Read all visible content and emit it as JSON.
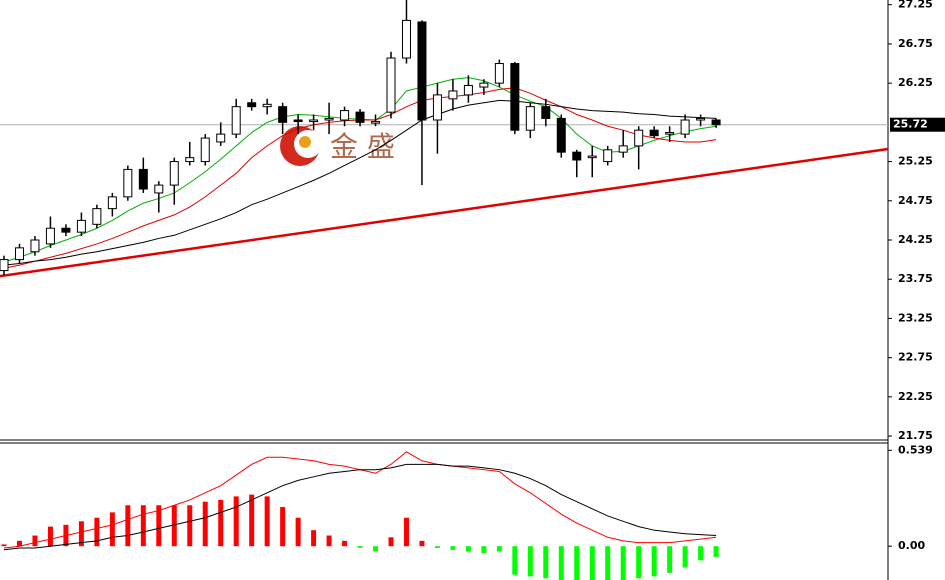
{
  "chart_data": [
    {
      "type": "candlestick",
      "ylim": [
        21.7,
        27.31
      ],
      "yticks": [
        27.25,
        26.75,
        26.25,
        25.25,
        24.75,
        24.25,
        23.75,
        23.25,
        22.75,
        22.25,
        21.75
      ],
      "current_price": 25.72,
      "current_price_color": "#b0b0b0",
      "up_color": "#ffffff",
      "down_color": "#000000",
      "wick_color": "#000000",
      "watermark": "金 盛",
      "open": [
        23.86,
        24.0,
        24.1,
        24.2,
        24.4,
        24.35,
        24.45,
        24.65,
        24.8,
        25.15,
        24.85,
        24.95,
        25.25,
        25.25,
        25.5,
        25.6,
        26.0,
        25.95,
        25.95,
        25.78,
        25.76,
        25.78,
        25.78,
        25.88,
        25.74,
        25.88,
        26.57,
        27.03,
        25.78,
        26.05,
        26.1,
        26.2,
        26.25,
        26.5,
        25.65,
        25.95,
        25.8,
        25.37,
        25.3,
        25.25,
        25.37,
        25.45,
        25.65,
        25.6,
        25.6,
        25.78,
        25.78
      ],
      "high": [
        24.05,
        24.2,
        24.3,
        24.55,
        24.45,
        24.6,
        24.7,
        24.85,
        25.2,
        25.3,
        25.0,
        25.3,
        25.5,
        25.6,
        25.75,
        26.05,
        26.05,
        26.05,
        26.0,
        25.85,
        25.85,
        26.0,
        25.95,
        25.92,
        25.85,
        26.65,
        27.31,
        27.05,
        26.25,
        26.3,
        26.35,
        26.3,
        26.55,
        26.52,
        26.0,
        26.05,
        25.85,
        25.4,
        25.45,
        25.45,
        25.65,
        25.7,
        25.7,
        25.7,
        25.85,
        25.85,
        25.8
      ],
      "low": [
        23.8,
        23.95,
        24.05,
        24.15,
        24.3,
        24.3,
        24.4,
        24.55,
        24.75,
        24.85,
        24.6,
        24.7,
        25.2,
        25.2,
        25.45,
        25.55,
        25.9,
        25.85,
        25.6,
        25.6,
        25.65,
        25.6,
        25.7,
        25.7,
        25.7,
        25.8,
        26.5,
        24.95,
        25.35,
        25.9,
        26.0,
        26.1,
        26.2,
        25.6,
        25.55,
        25.7,
        25.3,
        25.05,
        25.05,
        25.2,
        25.3,
        25.15,
        25.55,
        25.5,
        25.55,
        25.7,
        25.68
      ],
      "close": [
        24.0,
        24.15,
        24.25,
        24.4,
        24.35,
        24.5,
        24.65,
        24.8,
        25.15,
        24.9,
        24.95,
        25.25,
        25.3,
        25.55,
        25.6,
        25.95,
        25.95,
        25.98,
        25.75,
        25.76,
        25.78,
        25.8,
        25.9,
        25.75,
        25.76,
        26.57,
        27.05,
        25.78,
        26.1,
        26.15,
        26.22,
        26.25,
        26.5,
        25.65,
        25.95,
        25.8,
        25.37,
        25.27,
        25.32,
        25.4,
        25.45,
        25.65,
        25.58,
        25.62,
        25.78,
        25.8,
        25.72
      ],
      "series": [
        {
          "color": "#00b000",
          "values": [
            23.97,
            24.03,
            24.1,
            24.18,
            24.25,
            24.32,
            24.4,
            24.5,
            24.62,
            24.72,
            24.78,
            24.85,
            24.98,
            25.12,
            25.28,
            25.45,
            25.62,
            25.75,
            25.82,
            25.85,
            25.84,
            25.82,
            25.8,
            25.79,
            25.78,
            25.92,
            26.15,
            26.2,
            26.25,
            26.3,
            26.32,
            26.28,
            26.2,
            26.1,
            26.02,
            25.95,
            25.8,
            25.6,
            25.45,
            25.37,
            25.38,
            25.45,
            25.52,
            25.58,
            25.63,
            25.67,
            25.7
          ]
        },
        {
          "color": "#e00000",
          "values": [
            23.89,
            23.93,
            23.98,
            24.03,
            24.08,
            24.14,
            24.2,
            24.27,
            24.35,
            24.43,
            24.5,
            24.57,
            24.67,
            24.8,
            24.95,
            25.1,
            25.3,
            25.45,
            25.58,
            25.67,
            25.72,
            25.75,
            25.77,
            25.78,
            25.78,
            25.85,
            25.95,
            26.03,
            26.06,
            26.08,
            26.1,
            26.13,
            26.17,
            26.19,
            26.12,
            26.03,
            25.95,
            25.85,
            25.78,
            25.7,
            25.65,
            25.59,
            25.55,
            25.52,
            25.5,
            25.5,
            25.53
          ]
        },
        {
          "color": "#000000",
          "values": [
            23.93,
            23.95,
            23.98,
            24.0,
            24.03,
            24.07,
            24.1,
            24.14,
            24.18,
            24.22,
            24.27,
            24.31,
            24.38,
            24.45,
            24.52,
            24.6,
            24.7,
            24.77,
            24.85,
            24.93,
            25.01,
            25.1,
            25.2,
            25.3,
            25.4,
            25.52,
            25.65,
            25.78,
            25.85,
            25.92,
            25.97,
            26.0,
            26.03,
            26.02,
            26.0,
            25.98,
            25.95,
            25.92,
            25.9,
            25.89,
            25.88,
            25.86,
            25.85,
            25.83,
            25.82,
            25.81,
            25.8
          ]
        }
      ],
      "trendline": {
        "color": "#e00000",
        "values": [
          23.79,
          25.41
        ]
      }
    },
    {
      "type": "macd",
      "ylim": [
        -0.19,
        0.58
      ],
      "yticks": [
        0.539,
        {
          "value": 0,
          "label": "0.00"
        }
      ],
      "histogram": {
        "up_color": "#ff0000",
        "down_color": "#00ff00",
        "values": [
          0.01,
          0.03,
          0.06,
          0.11,
          0.12,
          0.14,
          0.16,
          0.19,
          0.23,
          0.23,
          0.23,
          0.23,
          0.23,
          0.25,
          0.26,
          0.28,
          0.29,
          0.28,
          0.22,
          0.16,
          0.09,
          0.06,
          0.03,
          -0.01,
          -0.03,
          0.05,
          0.16,
          0.03,
          -0.01,
          -0.02,
          -0.03,
          -0.04,
          -0.03,
          -0.16,
          -0.17,
          -0.18,
          -0.19,
          -0.19,
          -0.19,
          -0.19,
          -0.19,
          -0.18,
          -0.17,
          -0.15,
          -0.12,
          -0.08,
          -0.06
        ]
      },
      "series": [
        {
          "color": "#ff0000",
          "values": [
            -0.01,
            0.0,
            0.02,
            0.04,
            0.06,
            0.08,
            0.1,
            0.12,
            0.15,
            0.18,
            0.2,
            0.23,
            0.26,
            0.3,
            0.34,
            0.4,
            0.46,
            0.5,
            0.5,
            0.49,
            0.48,
            0.46,
            0.45,
            0.43,
            0.41,
            0.46,
            0.53,
            0.48,
            0.46,
            0.45,
            0.44,
            0.43,
            0.42,
            0.35,
            0.3,
            0.24,
            0.18,
            0.13,
            0.09,
            0.05,
            0.03,
            0.02,
            0.02,
            0.02,
            0.03,
            0.04,
            0.05
          ]
        },
        {
          "color": "#000000",
          "values": [
            -0.02,
            -0.01,
            -0.01,
            0.0,
            0.01,
            0.02,
            0.03,
            0.05,
            0.06,
            0.08,
            0.1,
            0.12,
            0.14,
            0.16,
            0.19,
            0.22,
            0.26,
            0.3,
            0.34,
            0.37,
            0.39,
            0.41,
            0.42,
            0.43,
            0.43,
            0.44,
            0.46,
            0.46,
            0.46,
            0.45,
            0.45,
            0.44,
            0.43,
            0.41,
            0.38,
            0.34,
            0.29,
            0.25,
            0.21,
            0.17,
            0.14,
            0.11,
            0.09,
            0.08,
            0.07,
            0.065,
            0.06
          ]
        }
      ]
    }
  ]
}
